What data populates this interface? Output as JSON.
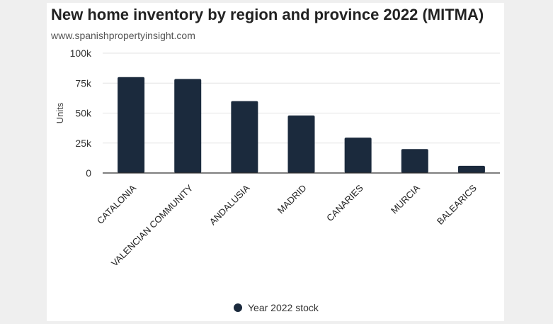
{
  "chart_data": {
    "type": "bar",
    "title": "New home inventory by region and province 2022 (MITMA)",
    "subtitle": "www.spanishpropertyinsight.com",
    "xlabel": "",
    "ylabel": "Units",
    "ylim": [
      0,
      100000
    ],
    "yticks": [
      {
        "value": 0,
        "label": "0"
      },
      {
        "value": 25000,
        "label": "25k"
      },
      {
        "value": 50000,
        "label": "50k"
      },
      {
        "value": 75000,
        "label": "75k"
      },
      {
        "value": 100000,
        "label": "100k"
      }
    ],
    "categories": [
      "CATALONIA",
      "VALENCIAN COMMUNITY",
      "ANDALUSIA",
      "MADRID",
      "CANARIES",
      "MURCIA",
      "BALEARICS"
    ],
    "series": [
      {
        "name": "Year 2022 stock",
        "values": [
          80000,
          78500,
          60000,
          48000,
          29500,
          20000,
          6000
        ]
      }
    ],
    "colors": {
      "bar": "#1b2a3d",
      "grid": "#e3e3e3",
      "axis": "#333333"
    },
    "grid": true,
    "legend_position": "bottom"
  }
}
